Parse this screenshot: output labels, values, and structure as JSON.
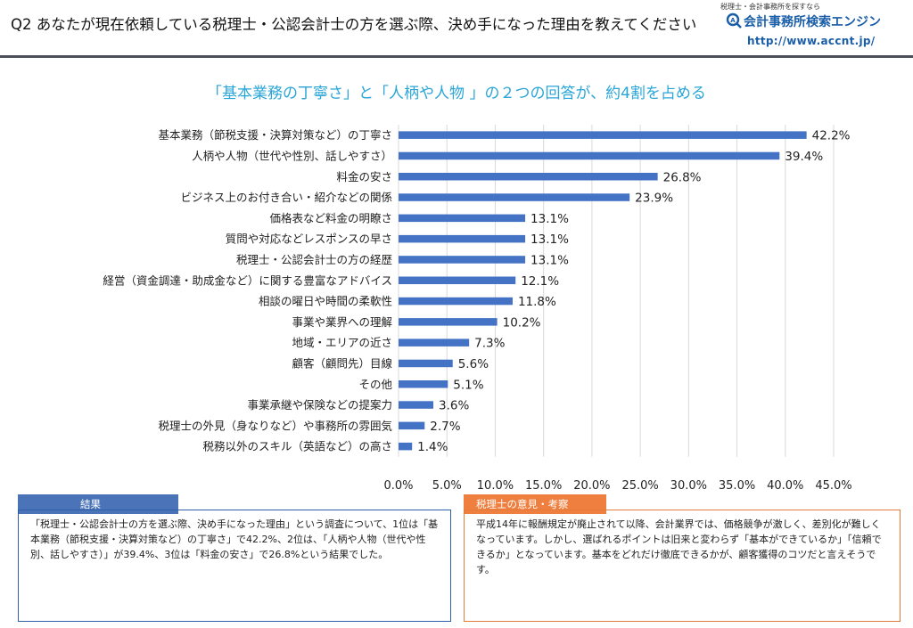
{
  "header": {
    "question": "Q2 あなたが現在依頼している税理士・公認会計士の方を選ぶ際、決め手になった理由を教えてください",
    "logo_tagline": "税理士・会計事務所を探すなら",
    "logo_name": "会計事務所検索エンジン",
    "logo_url": "http://www.accnt.jp/"
  },
  "headline": "「基本業務の丁寧さ」と「人柄や人物 」の２つの回答が、約4割を占める",
  "chart_data": {
    "type": "bar",
    "orientation": "horizontal",
    "categories": [
      "基本業務（節税支援・決算対策など）の丁寧さ",
      "人柄や人物（世代や性別、話しやすさ）",
      "料金の安さ",
      "ビジネス上のお付き合い・紹介などの関係",
      "価格表など料金の明瞭さ",
      "質問や対応などレスポンスの早さ",
      "税理士・公認会計士の方の経歴",
      "経営（資金調達・助成金など）に関する豊富なアドバイス",
      "相談の曜日や時間の柔軟性",
      "事業や業界への理解",
      "地域・エリアの近さ",
      "顧客（顧問先）目線",
      "その他",
      "事業承継や保険などの提案力",
      "税理士の外見（身なりなど）や事務所の雰囲気",
      "税務以外のスキル（英語など）の高さ"
    ],
    "values": [
      42.2,
      39.4,
      26.8,
      23.9,
      13.1,
      13.1,
      13.1,
      12.1,
      11.8,
      10.2,
      7.3,
      5.6,
      5.1,
      3.6,
      2.7,
      1.4
    ],
    "value_labels": [
      "42.2%",
      "39.4%",
      "26.8%",
      "23.9%",
      "13.1%",
      "13.1%",
      "13.1%",
      "12.1%",
      "11.8%",
      "10.2%",
      "7.3%",
      "5.6%",
      "5.1%",
      "3.6%",
      "2.7%",
      "1.4%"
    ],
    "xlim": [
      0,
      45
    ],
    "xticks": [
      0,
      5,
      10,
      15,
      20,
      25,
      30,
      35,
      40,
      45
    ],
    "xtick_labels": [
      "0.0%",
      "5.0%",
      "10.0%",
      "15.0%",
      "20.0%",
      "25.0%",
      "30.0%",
      "35.0%",
      "40.0%",
      "45.0%"
    ],
    "grid": "vertical",
    "bar_color": "#4472c4",
    "grid_color": "#d9d9d9"
  },
  "result_box": {
    "title": "結果",
    "text": "「税理士・公認会計士の方を選ぶ際、決め手になった理由」という調査について、1位は「基本業務（節税支援・決算対策など）の丁寧さ」で42.2%、2位は、「人柄や人物（世代や性別、話しやすさ）」が39.4%、3位は「料金の安さ」で26.8%という結果でした。",
    "border_color": "#2e5fa8"
  },
  "opinion_box": {
    "title": "税理士の意見・考察",
    "text": "平成14年に報酬規定が廃止されて以降、会計業界では、価格競争が激しく、差別化が難しくなっています。しかし、選ばれるポイントは旧来と変わらず「基本ができているか」「信頼できるか」となっています。基本をどれだけ徹底できるかが、顧客獲得のコツだと言えそうです。",
    "border_color": "#e57b3a"
  }
}
